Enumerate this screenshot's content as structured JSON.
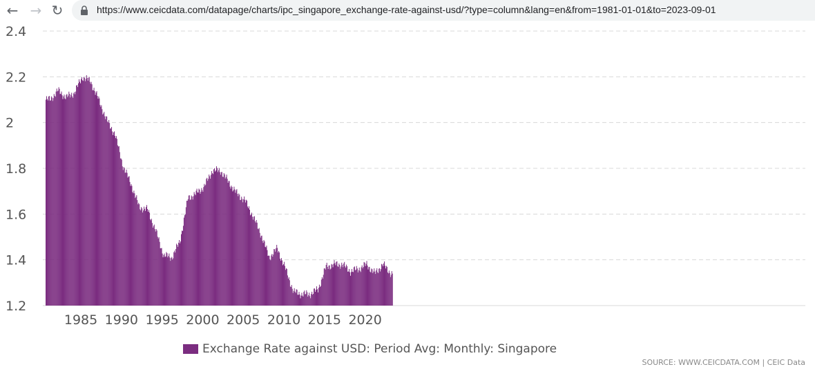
{
  "browser": {
    "back_icon": "arrow-left-icon",
    "forward_icon": "arrow-right-icon",
    "reload_icon": "reload-icon",
    "lock_icon": "lock-icon",
    "url": "https://www.ceicdata.com/datapage/charts/ipc_singapore_exchange-rate-against-usd/?type=column&lang=en&from=1981-01-01&to=2023-09-01"
  },
  "chart_data": {
    "type": "bar",
    "title": "",
    "xlabel": "",
    "ylabel": "",
    "ylim": [
      1.2,
      2.4
    ],
    "yticks": [
      "1.2",
      "1.4",
      "1.6",
      "1.8",
      "2",
      "2.2",
      "2.4"
    ],
    "xticks": [
      "1985",
      "1990",
      "1995",
      "2000",
      "2005",
      "2010",
      "2015",
      "2020"
    ],
    "x_start": "1981-01",
    "x_end": "2023-09",
    "frequency": "monthly",
    "series_name": "Exchange Rate against USD: Period Avg: Monthly: Singapore",
    "color": "#7b2d80",
    "grid": true,
    "legend_position": "bottom",
    "annual_avg": {
      "years": [
        1981,
        1982,
        1983,
        1984,
        1985,
        1986,
        1987,
        1988,
        1989,
        1990,
        1991,
        1992,
        1993,
        1994,
        1995,
        1996,
        1997,
        1998,
        1999,
        2000,
        2001,
        2002,
        2003,
        2004,
        2005,
        2006,
        2007,
        2008,
        2009,
        2010,
        2011,
        2012,
        2013,
        2014,
        2015,
        2016,
        2017,
        2018,
        2019,
        2020,
        2021,
        2022,
        2023
      ],
      "values": [
        2.1,
        2.14,
        2.11,
        2.13,
        2.2,
        2.18,
        2.1,
        2.01,
        1.95,
        1.81,
        1.73,
        1.63,
        1.62,
        1.53,
        1.42,
        1.41,
        1.48,
        1.67,
        1.69,
        1.72,
        1.79,
        1.79,
        1.74,
        1.69,
        1.66,
        1.59,
        1.51,
        1.41,
        1.45,
        1.36,
        1.26,
        1.25,
        1.25,
        1.27,
        1.37,
        1.38,
        1.38,
        1.35,
        1.36,
        1.38,
        1.34,
        1.38,
        1.34
      ]
    }
  },
  "legend": {
    "label": "Exchange Rate against USD: Period Avg: Monthly: Singapore"
  },
  "source": {
    "text": "SOURCE: WWW.CEICDATA.COM | CEIC Data"
  }
}
